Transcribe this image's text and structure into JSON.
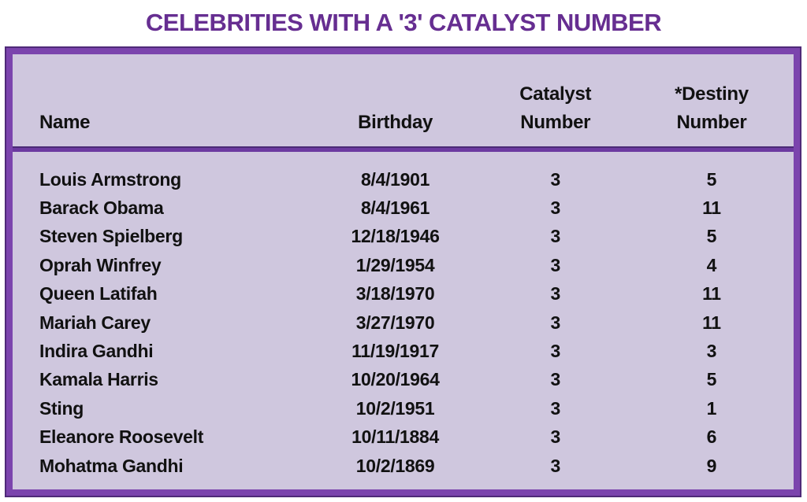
{
  "page": {
    "title": "CELEBRITIES WITH A '3' CATALYST NUMBER"
  },
  "table": {
    "headers": {
      "name": "Name",
      "birthday": "Birthday",
      "catalyst": "Catalyst\nNumber",
      "destiny": "*Destiny\nNumber"
    },
    "rows": [
      {
        "name": "Louis Armstrong",
        "birthday": "8/4/1901",
        "catalyst": "3",
        "destiny": "5"
      },
      {
        "name": "Barack Obama",
        "birthday": "8/4/1961",
        "catalyst": "3",
        "destiny": "11"
      },
      {
        "name": "Steven Spielberg",
        "birthday": "12/18/1946",
        "catalyst": "3",
        "destiny": "5"
      },
      {
        "name": "Oprah Winfrey",
        "birthday": "1/29/1954",
        "catalyst": "3",
        "destiny": "4"
      },
      {
        "name": "Queen Latifah",
        "birthday": "3/18/1970",
        "catalyst": "3",
        "destiny": "11"
      },
      {
        "name": "Mariah Carey",
        "birthday": "3/27/1970",
        "catalyst": "3",
        "destiny": "11"
      },
      {
        "name": "Indira Gandhi",
        "birthday": "11/19/1917",
        "catalyst": "3",
        "destiny": "3"
      },
      {
        "name": "Kamala Harris",
        "birthday": "10/20/1964",
        "catalyst": "3",
        "destiny": "5"
      },
      {
        "name": "Sting",
        "birthday": "10/2/1951",
        "catalyst": "3",
        "destiny": "1"
      },
      {
        "name": "Eleanore Roosevelt",
        "birthday": "10/11/1884",
        "catalyst": "3",
        "destiny": "6"
      },
      {
        "name": "Mohatma Gandhi",
        "birthday": "10/2/1869",
        "catalyst": "3",
        "destiny": "9"
      }
    ]
  },
  "colors": {
    "title_purple": "#662e91",
    "border_purple": "#7b44ad",
    "border_dark_purple": "#4f2a78",
    "divider_purple": "#6c3aa0",
    "table_background": "#cfc7de",
    "text_black": "#111111",
    "page_background": "#ffffff"
  }
}
